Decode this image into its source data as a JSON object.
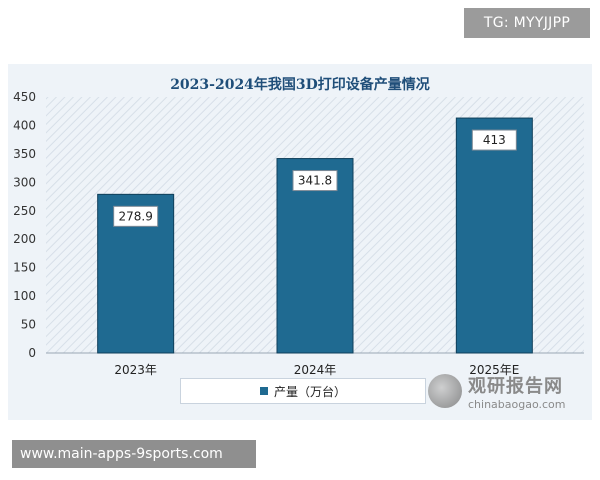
{
  "badges": {
    "tg": "TG: MYYJJPP",
    "site": "www.main-apps-9sports.com"
  },
  "watermark": {
    "title": "观研报告网",
    "url": "chinabaogao.com"
  },
  "colors": {
    "bar": "#1f6a91",
    "bar_stroke": "#0f3f5a",
    "panel": "#eef3f8",
    "title": "#1f4e79"
  },
  "chart_data": {
    "type": "bar",
    "title": "2023-2024年我国3D打印设备产量情况",
    "categories": [
      "2023年",
      "2024年",
      "2025年E"
    ],
    "series": [
      {
        "name": "产量（万台）",
        "values": [
          278.9,
          341.8,
          413
        ]
      }
    ],
    "data_labels": [
      "278.9",
      "341.8",
      "413"
    ],
    "y_ticks": [
      "0",
      "50",
      "100",
      "150",
      "200",
      "250",
      "300",
      "350",
      "400",
      "450"
    ],
    "ylim": [
      0,
      450
    ],
    "grid": false,
    "legend_position": "bottom"
  }
}
